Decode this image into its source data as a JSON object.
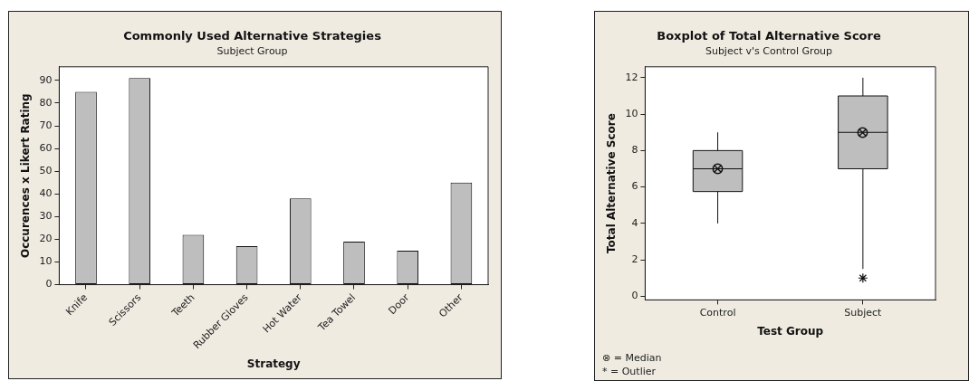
{
  "chart_data": [
    {
      "type": "bar",
      "title": "Commonly Used Alternative Strategies",
      "subtitle": "Subject Group",
      "xlabel": "Strategy",
      "ylabel": "Occurences x Likert Rating",
      "categories": [
        "Knife",
        "Scissors",
        "Teeth",
        "Rubber Gloves",
        "Hot Water",
        "Tea Towel",
        "Door",
        "Other"
      ],
      "values": [
        85,
        91,
        22,
        17,
        38,
        19,
        15,
        45
      ],
      "color": "#bebebe",
      "ylim": [
        0,
        96
      ],
      "yticks": [
        0,
        10,
        20,
        30,
        40,
        50,
        60,
        70,
        80,
        90
      ],
      "legend": false,
      "grid": false
    },
    {
      "type": "box",
      "title": "Boxplot of Total Alternative Score",
      "subtitle": "Subject v's Control Group",
      "xlabel": "Test Group",
      "ylabel": "Total Alternative Score",
      "categories": [
        "Control",
        "Subject"
      ],
      "color": "#bebebe",
      "boxes": [
        {
          "low": 4,
          "q1": 5.75,
          "median": 7,
          "q3": 8,
          "high": 9
        },
        {
          "low": 1.5,
          "q1": 7,
          "median": 9,
          "q3": 11,
          "high": 12,
          "outliers": [
            1
          ]
        }
      ],
      "ylim": [
        -0.2,
        12.6
      ],
      "yticks": [
        0,
        2,
        4,
        6,
        8,
        10,
        12
      ],
      "legend": false,
      "grid": false,
      "annotations": [
        "⊗ = Median",
        "* = Outlier"
      ]
    }
  ]
}
